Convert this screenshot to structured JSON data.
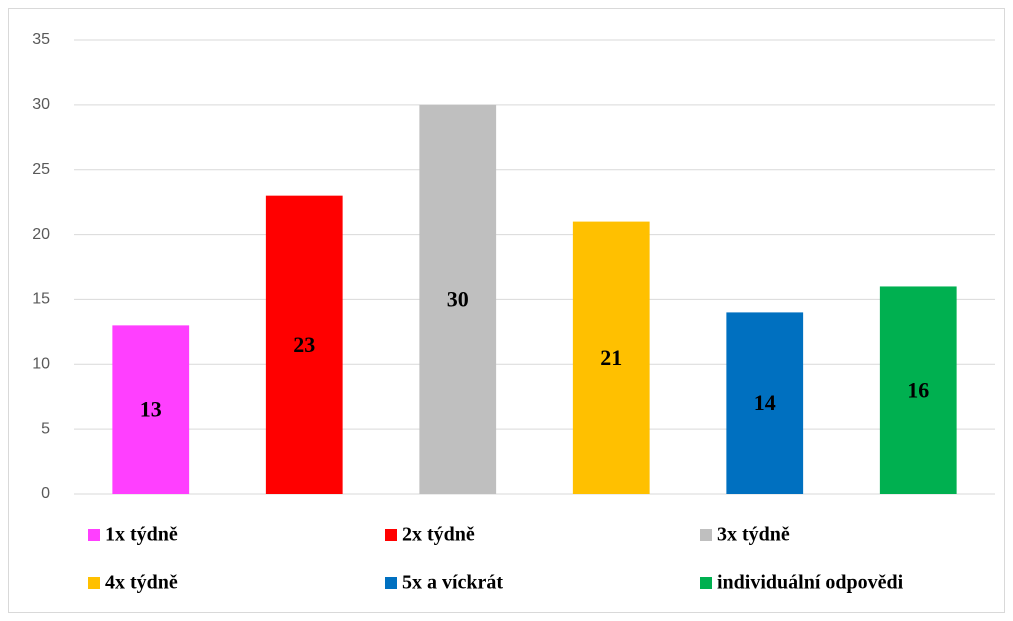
{
  "chart_data": {
    "type": "bar",
    "categories": [
      "1x týdně",
      "2x týdně",
      "3x týdně",
      "4x týdně",
      "5x a víckrát",
      "individuální odpovědi"
    ],
    "values": [
      13,
      23,
      30,
      21,
      14,
      16
    ],
    "colors": [
      "#ff3fff",
      "#ff0000",
      "#bfbfbf",
      "#ffc000",
      "#0070c0",
      "#00b050"
    ],
    "ylim": [
      0,
      35
    ],
    "yticks": [
      0,
      5,
      10,
      15,
      20,
      25,
      30,
      35
    ],
    "grid": true,
    "legend": "bottom"
  }
}
